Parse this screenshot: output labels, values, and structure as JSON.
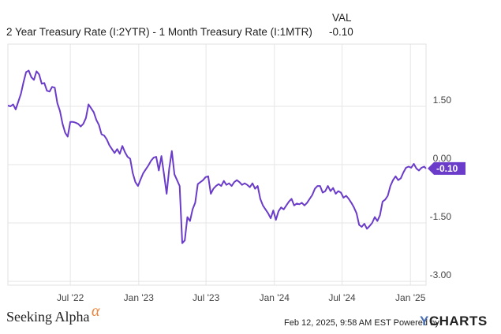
{
  "legend": {
    "series_label": "2 Year Treasury Rate (I:2YTR) - 1 Month Treasury Rate (I:1MTR)",
    "value_header": "VAL",
    "value": "-0.10"
  },
  "footer": {
    "brand": "Seeking Alpha",
    "brand_mark": "α",
    "timestamp": "Feb 12, 2025, 9:58 AM EST Powered by",
    "provider_mark": "Y",
    "provider_rest": "CHARTS"
  },
  "colors": {
    "series": "#6a3cc9",
    "grid": "#e6e6e6",
    "axis_text": "#444444"
  },
  "chart_data": {
    "type": "line",
    "x_axis": {
      "type": "date",
      "range": [
        "2022-01-14",
        "2025-02-12"
      ],
      "ticks": [
        {
          "date": "2022-07-01",
          "label": "Jul '22"
        },
        {
          "date": "2023-01-01",
          "label": "Jan '23"
        },
        {
          "date": "2023-07-01",
          "label": "Jul '23"
        },
        {
          "date": "2024-01-01",
          "label": "Jan '24"
        },
        {
          "date": "2024-07-01",
          "label": "Jul '24"
        },
        {
          "date": "2025-01-01",
          "label": "Jan '25"
        }
      ]
    },
    "y_axis": {
      "range": [
        -3.1,
        3.1
      ],
      "ticks": [
        {
          "value": 1.5,
          "label": "1.50"
        },
        {
          "value": 0,
          "label": "0.00"
        },
        {
          "value": -1.5,
          "label": "-1.50"
        },
        {
          "value": -3,
          "label": "-3.00"
        }
      ]
    },
    "grid": true,
    "last_value_label": "-0.10",
    "series": [
      {
        "points": [
          [
            "2022-01-14",
            1.52
          ],
          [
            "2022-01-21",
            1.5
          ],
          [
            "2022-01-28",
            1.55
          ],
          [
            "2022-02-04",
            1.42
          ],
          [
            "2022-02-11",
            1.62
          ],
          [
            "2022-02-18",
            1.82
          ],
          [
            "2022-02-25",
            2.12
          ],
          [
            "2022-03-04",
            2.38
          ],
          [
            "2022-03-11",
            2.42
          ],
          [
            "2022-03-18",
            2.25
          ],
          [
            "2022-03-25",
            2.18
          ],
          [
            "2022-04-01",
            2.4
          ],
          [
            "2022-04-08",
            2.32
          ],
          [
            "2022-04-15",
            2.08
          ],
          [
            "2022-04-22",
            2.1
          ],
          [
            "2022-04-29",
            1.9
          ],
          [
            "2022-05-06",
            1.88
          ],
          [
            "2022-05-13",
            2.0
          ],
          [
            "2022-05-20",
            1.98
          ],
          [
            "2022-05-27",
            1.58
          ],
          [
            "2022-06-03",
            1.38
          ],
          [
            "2022-06-10",
            1.05
          ],
          [
            "2022-06-17",
            0.82
          ],
          [
            "2022-06-24",
            0.72
          ],
          [
            "2022-07-01",
            1.1
          ],
          [
            "2022-07-08",
            1.1
          ],
          [
            "2022-07-15",
            1.08
          ],
          [
            "2022-07-22",
            1.05
          ],
          [
            "2022-07-29",
            0.98
          ],
          [
            "2022-08-05",
            1.05
          ],
          [
            "2022-08-12",
            1.2
          ],
          [
            "2022-08-19",
            1.55
          ],
          [
            "2022-08-26",
            1.45
          ],
          [
            "2022-09-02",
            1.35
          ],
          [
            "2022-09-09",
            1.15
          ],
          [
            "2022-09-16",
            1.02
          ],
          [
            "2022-09-23",
            0.78
          ],
          [
            "2022-09-30",
            0.75
          ],
          [
            "2022-10-07",
            0.65
          ],
          [
            "2022-10-14",
            0.5
          ],
          [
            "2022-10-21",
            0.4
          ],
          [
            "2022-10-28",
            0.3
          ],
          [
            "2022-11-04",
            0.4
          ],
          [
            "2022-11-11",
            0.28
          ],
          [
            "2022-11-18",
            0.48
          ],
          [
            "2022-11-25",
            0.32
          ],
          [
            "2022-12-02",
            0.2
          ],
          [
            "2022-12-09",
            0.15
          ],
          [
            "2022-12-16",
            -0.22
          ],
          [
            "2022-12-23",
            -0.45
          ],
          [
            "2022-12-30",
            -0.55
          ],
          [
            "2023-01-06",
            -0.38
          ],
          [
            "2023-01-13",
            -0.22
          ],
          [
            "2023-01-20",
            -0.12
          ],
          [
            "2023-01-27",
            -0.02
          ],
          [
            "2023-02-03",
            0.1
          ],
          [
            "2023-02-10",
            0.18
          ],
          [
            "2023-02-17",
            0.2
          ],
          [
            "2023-02-24",
            -0.15
          ],
          [
            "2023-03-03",
            0.22
          ],
          [
            "2023-03-10",
            -0.25
          ],
          [
            "2023-03-17",
            -0.75
          ],
          [
            "2023-03-24",
            -0.1
          ],
          [
            "2023-03-31",
            0.35
          ],
          [
            "2023-04-07",
            -0.25
          ],
          [
            "2023-04-14",
            -0.4
          ],
          [
            "2023-04-21",
            -0.55
          ],
          [
            "2023-04-28",
            -2.02
          ],
          [
            "2023-05-05",
            -1.95
          ],
          [
            "2023-05-12",
            -1.35
          ],
          [
            "2023-05-19",
            -1.45
          ],
          [
            "2023-05-26",
            -1.15
          ],
          [
            "2023-06-02",
            -0.98
          ],
          [
            "2023-06-09",
            -0.5
          ],
          [
            "2023-06-16",
            -0.45
          ],
          [
            "2023-06-23",
            -0.4
          ],
          [
            "2023-06-30",
            -0.32
          ],
          [
            "2023-07-07",
            -0.3
          ],
          [
            "2023-07-14",
            -0.75
          ],
          [
            "2023-07-21",
            -0.62
          ],
          [
            "2023-07-28",
            -0.55
          ],
          [
            "2023-08-04",
            -0.5
          ],
          [
            "2023-08-11",
            -0.55
          ],
          [
            "2023-08-18",
            -0.42
          ],
          [
            "2023-08-25",
            -0.52
          ],
          [
            "2023-09-01",
            -0.48
          ],
          [
            "2023-09-08",
            -0.55
          ],
          [
            "2023-09-15",
            -0.45
          ],
          [
            "2023-09-22",
            -0.4
          ],
          [
            "2023-09-29",
            -0.45
          ],
          [
            "2023-10-06",
            -0.52
          ],
          [
            "2023-10-13",
            -0.48
          ],
          [
            "2023-10-20",
            -0.52
          ],
          [
            "2023-10-27",
            -0.58
          ],
          [
            "2023-11-03",
            -0.48
          ],
          [
            "2023-11-10",
            -0.62
          ],
          [
            "2023-11-17",
            -0.55
          ],
          [
            "2023-11-24",
            -0.88
          ],
          [
            "2023-12-01",
            -1.05
          ],
          [
            "2023-12-08",
            -1.15
          ],
          [
            "2023-12-15",
            -1.25
          ],
          [
            "2023-12-22",
            -1.38
          ],
          [
            "2023-12-29",
            -1.18
          ],
          [
            "2024-01-05",
            -1.42
          ],
          [
            "2024-01-12",
            -1.2
          ],
          [
            "2024-01-19",
            -1.1
          ],
          [
            "2024-01-26",
            -1.15
          ],
          [
            "2024-02-02",
            -1.05
          ],
          [
            "2024-02-09",
            -0.95
          ],
          [
            "2024-02-16",
            -0.88
          ],
          [
            "2024-02-23",
            -1.05
          ],
          [
            "2024-03-01",
            -1.0
          ],
          [
            "2024-03-08",
            -1.02
          ],
          [
            "2024-03-15",
            -0.98
          ],
          [
            "2024-03-22",
            -1.05
          ],
          [
            "2024-03-29",
            -0.98
          ],
          [
            "2024-04-05",
            -0.88
          ],
          [
            "2024-04-12",
            -0.78
          ],
          [
            "2024-04-19",
            -0.62
          ],
          [
            "2024-04-26",
            -0.55
          ],
          [
            "2024-05-03",
            -0.55
          ],
          [
            "2024-05-10",
            -0.72
          ],
          [
            "2024-05-17",
            -0.68
          ],
          [
            "2024-05-24",
            -0.55
          ],
          [
            "2024-05-31",
            -0.68
          ],
          [
            "2024-06-07",
            -0.6
          ],
          [
            "2024-06-14",
            -0.75
          ],
          [
            "2024-06-21",
            -0.68
          ],
          [
            "2024-06-28",
            -0.72
          ],
          [
            "2024-07-05",
            -0.85
          ],
          [
            "2024-07-12",
            -0.8
          ],
          [
            "2024-07-19",
            -0.88
          ],
          [
            "2024-07-26",
            -0.98
          ],
          [
            "2024-08-02",
            -1.1
          ],
          [
            "2024-08-09",
            -1.25
          ],
          [
            "2024-08-16",
            -1.55
          ],
          [
            "2024-08-23",
            -1.6
          ],
          [
            "2024-08-30",
            -1.52
          ],
          [
            "2024-09-06",
            -1.65
          ],
          [
            "2024-09-13",
            -1.58
          ],
          [
            "2024-09-20",
            -1.5
          ],
          [
            "2024-09-27",
            -1.35
          ],
          [
            "2024-10-04",
            -1.45
          ],
          [
            "2024-10-11",
            -1.3
          ],
          [
            "2024-10-18",
            -0.95
          ],
          [
            "2024-10-25",
            -0.9
          ],
          [
            "2024-11-01",
            -0.8
          ],
          [
            "2024-11-08",
            -0.55
          ],
          [
            "2024-11-15",
            -0.4
          ],
          [
            "2024-11-22",
            -0.3
          ],
          [
            "2024-11-29",
            -0.4
          ],
          [
            "2024-12-06",
            -0.35
          ],
          [
            "2024-12-13",
            -0.2
          ],
          [
            "2024-12-20",
            -0.08
          ],
          [
            "2024-12-27",
            -0.05
          ],
          [
            "2025-01-03",
            -0.08
          ],
          [
            "2025-01-10",
            0.02
          ],
          [
            "2025-01-17",
            -0.1
          ],
          [
            "2025-01-24",
            -0.15
          ],
          [
            "2025-01-31",
            -0.08
          ],
          [
            "2025-02-07",
            -0.05
          ],
          [
            "2025-02-12",
            -0.1
          ]
        ]
      }
    ]
  }
}
